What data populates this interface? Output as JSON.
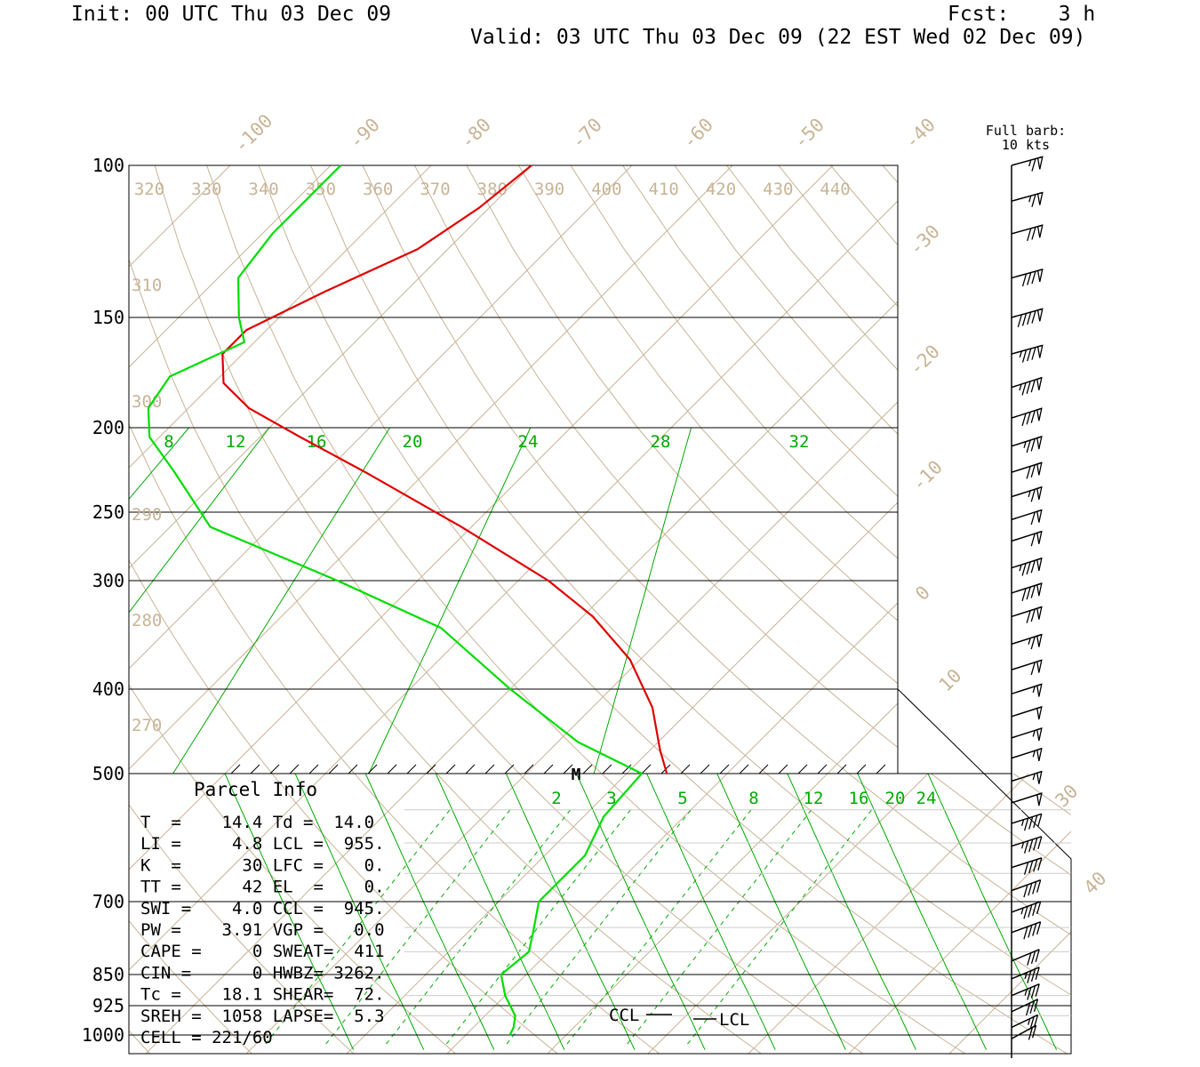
{
  "header": {
    "init": "Init: 00 UTC Thu 03 Dec 09",
    "fcst": "Fcst:    3 h",
    "valid": "Valid: 03 UTC Thu 03 Dec 09 (22 EST Wed 02 Dec 09)"
  },
  "colors": {
    "temperature": "#e00000",
    "dewpoint": "#00dd00",
    "guide": "#c8b496",
    "mixing": "#00aa00",
    "axis": "#000000"
  },
  "chart_data": {
    "type": "line",
    "skew_t_diagram": true,
    "pressure_axis_hpa": [
      100,
      150,
      200,
      250,
      300,
      400,
      500,
      700,
      850,
      925,
      1000
    ],
    "temperature_labels_top": [
      "-100",
      "-90",
      "-80",
      "-70",
      "-60",
      "-50",
      "-40"
    ],
    "temperature_labels_side": [
      "-30",
      "-20",
      "-10",
      "0",
      "10",
      "30",
      "40"
    ],
    "theta_labels_top": [
      "320",
      "330",
      "340",
      "350",
      "360",
      "370",
      "380",
      "390",
      "400",
      "410",
      "420",
      "430",
      "440"
    ],
    "theta_labels_left": [
      "310",
      "300",
      "290",
      "280",
      "270"
    ],
    "mixing_ratio_labels_upper": [
      "8",
      "12",
      "16",
      "20",
      "24",
      "28",
      "32"
    ],
    "mixing_ratio_labels_lower": [
      "2",
      "3",
      "5",
      "8",
      "12",
      "16",
      "20",
      "24"
    ],
    "wind_barb_title": [
      "Full barb:",
      "10 kts"
    ],
    "levels": {
      "mid_marker": "M",
      "ccl_label": "CCL",
      "lcl_label": "LCL"
    },
    "series": [
      {
        "key": "temperature",
        "pressure": [
          100,
          112,
          125,
          140,
          155,
          165,
          178,
          190,
          205,
          225,
          260,
          300,
          330,
          370,
          420,
          470,
          500
        ],
        "temp_c": [
          -70,
          -71,
          -73,
          -78,
          -82,
          -82,
          -79,
          -74,
          -66,
          -56,
          -41,
          -27,
          -19,
          -11,
          -4,
          1,
          4
        ]
      },
      {
        "key": "dewpoint",
        "pressure": [
          100,
          120,
          135,
          150,
          160,
          175,
          190,
          205,
          225,
          260,
          300,
          340,
          400,
          460,
          500,
          560,
          620,
          700,
          760,
          800,
          850,
          900,
          950,
          980,
          1000
        ],
        "temp_c": [
          -89,
          -89,
          -88,
          -84,
          -81,
          -85,
          -84,
          -81,
          -75,
          -66,
          -48,
          -33,
          -20,
          -8,
          1.5,
          2,
          4,
          4,
          6.5,
          8,
          7.5,
          10,
          13,
          14,
          14.4
        ]
      }
    ],
    "wind_barbs": [
      {
        "p": 100,
        "speed_kt": 65,
        "dir_deg": 255
      },
      {
        "p": 110,
        "speed_kt": 65,
        "dir_deg": 255
      },
      {
        "p": 120,
        "speed_kt": 70,
        "dir_deg": 255
      },
      {
        "p": 135,
        "speed_kt": 80,
        "dir_deg": 255
      },
      {
        "p": 150,
        "speed_kt": 90,
        "dir_deg": 255
      },
      {
        "p": 165,
        "speed_kt": 85,
        "dir_deg": 255
      },
      {
        "p": 180,
        "speed_kt": 85,
        "dir_deg": 250
      },
      {
        "p": 195,
        "speed_kt": 80,
        "dir_deg": 250
      },
      {
        "p": 210,
        "speed_kt": 75,
        "dir_deg": 250
      },
      {
        "p": 225,
        "speed_kt": 70,
        "dir_deg": 250
      },
      {
        "p": 240,
        "speed_kt": 65,
        "dir_deg": 250
      },
      {
        "p": 255,
        "speed_kt": 60,
        "dir_deg": 250
      },
      {
        "p": 270,
        "speed_kt": 60,
        "dir_deg": 250
      },
      {
        "p": 290,
        "speed_kt": 85,
        "dir_deg": 250
      },
      {
        "p": 310,
        "speed_kt": 80,
        "dir_deg": 250
      },
      {
        "p": 330,
        "speed_kt": 70,
        "dir_deg": 250
      },
      {
        "p": 355,
        "speed_kt": 65,
        "dir_deg": 250
      },
      {
        "p": 380,
        "speed_kt": 60,
        "dir_deg": 250
      },
      {
        "p": 405,
        "speed_kt": 55,
        "dir_deg": 250
      },
      {
        "p": 430,
        "speed_kt": 50,
        "dir_deg": 250
      },
      {
        "p": 455,
        "speed_kt": 55,
        "dir_deg": 250
      },
      {
        "p": 480,
        "speed_kt": 55,
        "dir_deg": 250
      },
      {
        "p": 510,
        "speed_kt": 55,
        "dir_deg": 250
      },
      {
        "p": 540,
        "speed_kt": 50,
        "dir_deg": 250
      },
      {
        "p": 570,
        "speed_kt": 45,
        "dir_deg": 250
      },
      {
        "p": 605,
        "speed_kt": 45,
        "dir_deg": 250
      },
      {
        "p": 640,
        "speed_kt": 40,
        "dir_deg": 250
      },
      {
        "p": 680,
        "speed_kt": 40,
        "dir_deg": 245
      },
      {
        "p": 720,
        "speed_kt": 45,
        "dir_deg": 245
      },
      {
        "p": 760,
        "speed_kt": 40,
        "dir_deg": 245
      },
      {
        "p": 820,
        "speed_kt": 30,
        "dir_deg": 240
      },
      {
        "p": 860,
        "speed_kt": 35,
        "dir_deg": 240
      },
      {
        "p": 900,
        "speed_kt": 35,
        "dir_deg": 240
      },
      {
        "p": 940,
        "speed_kt": 30,
        "dir_deg": 235
      },
      {
        "p": 980,
        "speed_kt": 25,
        "dir_deg": 235
      },
      {
        "p": 1010,
        "speed_kt": 20,
        "dir_deg": 230
      }
    ]
  },
  "parcel_info": {
    "title": "Parcel Info",
    "rows": [
      "T  =    14.4 Td =  14.0",
      "LI =     4.8 LCL =  955.",
      "K  =      30 LFC =    0.",
      "TT =      42 EL  =    0.",
      "SWI =    4.0 CCL =  945.",
      "PW =    3.91 VGP =   0.0",
      "CAPE =     0 SWEAT=  411",
      "CIN =      0 HWBZ= 3262.",
      "Tc =    18.1 SHEAR=  72.",
      "SREH =  1058 LAPSE=  5.3",
      "CELL = 221/60"
    ]
  }
}
